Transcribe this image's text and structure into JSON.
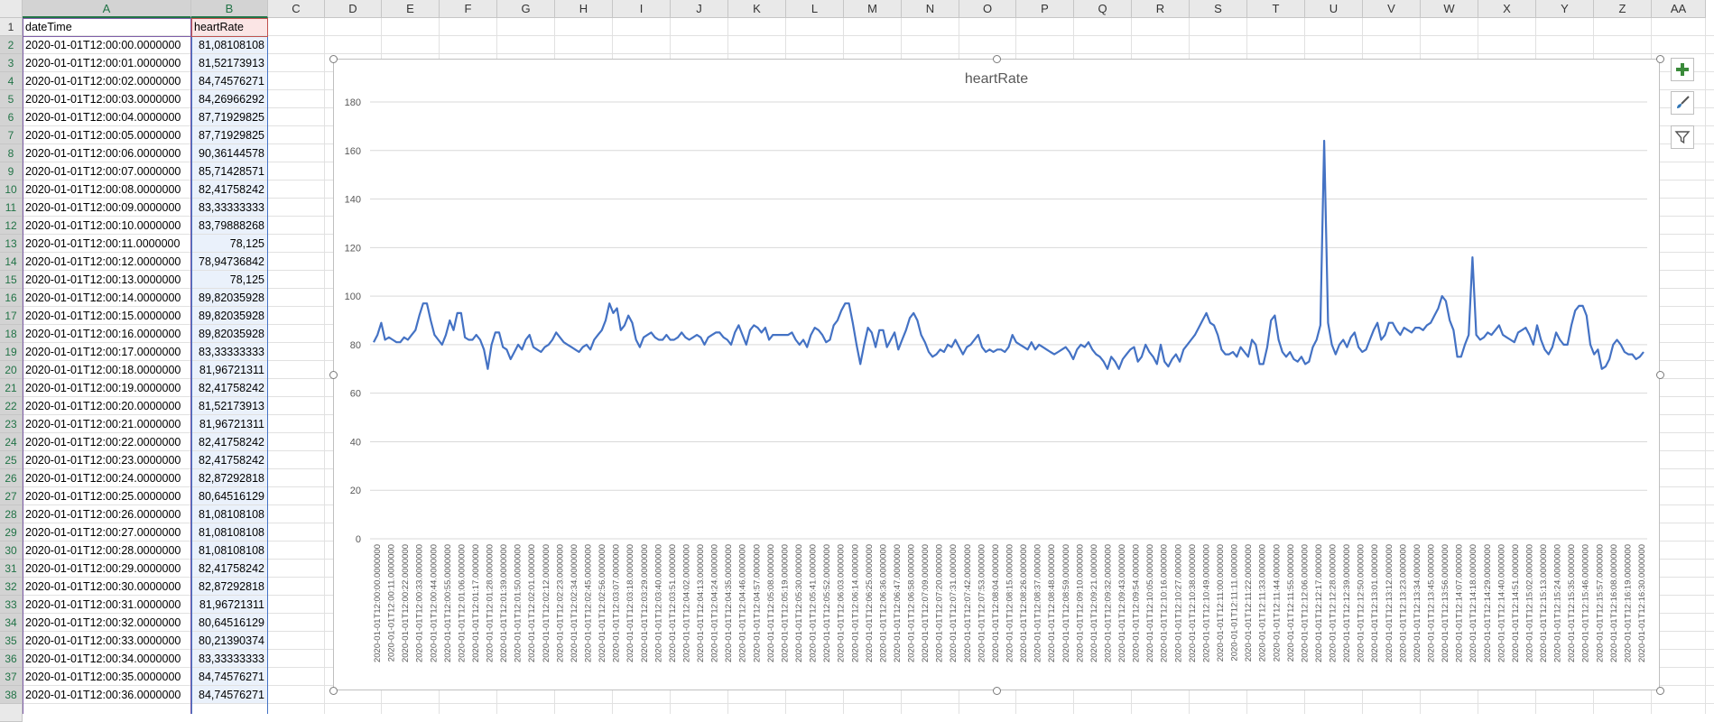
{
  "columns": [
    "A",
    "B",
    "C",
    "D",
    "E",
    "F",
    "G",
    "H",
    "I",
    "J",
    "K",
    "L",
    "M",
    "N",
    "O",
    "P",
    "Q",
    "R",
    "S",
    "T",
    "U",
    "V",
    "W",
    "X",
    "Y",
    "Z",
    "AA"
  ],
  "rows": [
    {
      "n": "1",
      "a": "dateTime",
      "b": "heartRate"
    },
    {
      "n": "2",
      "a": "2020-01-01T12:00:00.0000000",
      "b": "81,08108108"
    },
    {
      "n": "3",
      "a": "2020-01-01T12:00:01.0000000",
      "b": "81,52173913"
    },
    {
      "n": "4",
      "a": "2020-01-01T12:00:02.0000000",
      "b": "84,74576271"
    },
    {
      "n": "5",
      "a": "2020-01-01T12:00:03.0000000",
      "b": "84,26966292"
    },
    {
      "n": "6",
      "a": "2020-01-01T12:00:04.0000000",
      "b": "87,71929825"
    },
    {
      "n": "7",
      "a": "2020-01-01T12:00:05.0000000",
      "b": "87,71929825"
    },
    {
      "n": "8",
      "a": "2020-01-01T12:00:06.0000000",
      "b": "90,36144578"
    },
    {
      "n": "9",
      "a": "2020-01-01T12:00:07.0000000",
      "b": "85,71428571"
    },
    {
      "n": "10",
      "a": "2020-01-01T12:00:08.0000000",
      "b": "82,41758242"
    },
    {
      "n": "11",
      "a": "2020-01-01T12:00:09.0000000",
      "b": "83,33333333"
    },
    {
      "n": "12",
      "a": "2020-01-01T12:00:10.0000000",
      "b": "83,79888268"
    },
    {
      "n": "13",
      "a": "2020-01-01T12:00:11.0000000",
      "b": "78,125"
    },
    {
      "n": "14",
      "a": "2020-01-01T12:00:12.0000000",
      "b": "78,94736842"
    },
    {
      "n": "15",
      "a": "2020-01-01T12:00:13.0000000",
      "b": "78,125"
    },
    {
      "n": "16",
      "a": "2020-01-01T12:00:14.0000000",
      "b": "89,82035928"
    },
    {
      "n": "17",
      "a": "2020-01-01T12:00:15.0000000",
      "b": "89,82035928"
    },
    {
      "n": "18",
      "a": "2020-01-01T12:00:16.0000000",
      "b": "89,82035928"
    },
    {
      "n": "19",
      "a": "2020-01-01T12:00:17.0000000",
      "b": "83,33333333"
    },
    {
      "n": "20",
      "a": "2020-01-01T12:00:18.0000000",
      "b": "81,96721311"
    },
    {
      "n": "21",
      "a": "2020-01-01T12:00:19.0000000",
      "b": "82,41758242"
    },
    {
      "n": "22",
      "a": "2020-01-01T12:00:20.0000000",
      "b": "81,52173913"
    },
    {
      "n": "23",
      "a": "2020-01-01T12:00:21.0000000",
      "b": "81,96721311"
    },
    {
      "n": "24",
      "a": "2020-01-01T12:00:22.0000000",
      "b": "82,41758242"
    },
    {
      "n": "25",
      "a": "2020-01-01T12:00:23.0000000",
      "b": "82,41758242"
    },
    {
      "n": "26",
      "a": "2020-01-01T12:00:24.0000000",
      "b": "82,87292818"
    },
    {
      "n": "27",
      "a": "2020-01-01T12:00:25.0000000",
      "b": "80,64516129"
    },
    {
      "n": "28",
      "a": "2020-01-01T12:00:26.0000000",
      "b": "81,08108108"
    },
    {
      "n": "29",
      "a": "2020-01-01T12:00:27.0000000",
      "b": "81,08108108"
    },
    {
      "n": "30",
      "a": "2020-01-01T12:00:28.0000000",
      "b": "81,08108108"
    },
    {
      "n": "31",
      "a": "2020-01-01T12:00:29.0000000",
      "b": "82,41758242"
    },
    {
      "n": "32",
      "a": "2020-01-01T12:00:30.0000000",
      "b": "82,87292818"
    },
    {
      "n": "33",
      "a": "2020-01-01T12:00:31.0000000",
      "b": "81,96721311"
    },
    {
      "n": "34",
      "a": "2020-01-01T12:00:32.0000000",
      "b": "80,64516129"
    },
    {
      "n": "35",
      "a": "2020-01-01T12:00:33.0000000",
      "b": "80,21390374"
    },
    {
      "n": "36",
      "a": "2020-01-01T12:00:34.0000000",
      "b": "83,33333333"
    },
    {
      "n": "37",
      "a": "2020-01-01T12:00:35.0000000",
      "b": "84,74576271"
    },
    {
      "n": "38",
      "a": "2020-01-01T12:00:36.0000000",
      "b": "84,74576271"
    }
  ],
  "chart": {
    "title": "heartRate",
    "line_color": "#4472c4",
    "y_ticks": [
      "0",
      "20",
      "40",
      "60",
      "80",
      "100",
      "120",
      "140",
      "160",
      "180"
    ],
    "ylim": [
      0,
      180
    ],
    "x_labels": [
      "2020-01-01T12:00:00.0000000",
      "2020-01-01T12:00:11.0000000",
      "2020-01-01T12:00:22.0000000",
      "2020-01-01T12:00:33.0000000",
      "2020-01-01T12:00:44.0000000",
      "2020-01-01T12:00:55.0000000",
      "2020-01-01T12:01:06.0000000",
      "2020-01-01T12:01:17.0000000",
      "2020-01-01T12:01:28.0000000",
      "2020-01-01T12:01:39.0000000",
      "2020-01-01T12:01:50.0000000",
      "2020-01-01T12:02:01.0000000",
      "2020-01-01T12:02:12.0000000",
      "2020-01-01T12:02:23.0000000",
      "2020-01-01T12:02:34.0000000",
      "2020-01-01T12:02:45.0000000",
      "2020-01-01T12:02:56.0000000",
      "2020-01-01T12:03:07.0000000",
      "2020-01-01T12:03:18.0000000",
      "2020-01-01T12:03:29.0000000",
      "2020-01-01T12:03:40.0000000",
      "2020-01-01T12:03:51.0000000",
      "2020-01-01T12:04:02.0000000",
      "2020-01-01T12:04:13.0000000",
      "2020-01-01T12:04:24.0000000",
      "2020-01-01T12:04:35.0000000",
      "2020-01-01T12:04:46.0000000",
      "2020-01-01T12:04:57.0000000",
      "2020-01-01T12:05:08.0000000",
      "2020-01-01T12:05:19.0000000",
      "2020-01-01T12:05:30.0000000",
      "2020-01-01T12:05:41.0000000",
      "2020-01-01T12:05:52.0000000",
      "2020-01-01T12:06:03.0000000",
      "2020-01-01T12:06:14.0000000",
      "2020-01-01T12:06:25.0000000",
      "2020-01-01T12:06:36.0000000",
      "2020-01-01T12:06:47.0000000",
      "2020-01-01T12:06:58.0000000",
      "2020-01-01T12:07:09.0000000",
      "2020-01-01T12:07:20.0000000",
      "2020-01-01T12:07:31.0000000",
      "2020-01-01T12:07:42.0000000",
      "2020-01-01T12:07:53.0000000",
      "2020-01-01T12:08:04.0000000",
      "2020-01-01T12:08:15.0000000",
      "2020-01-01T12:08:26.0000000",
      "2020-01-01T12:08:37.0000000",
      "2020-01-01T12:08:48.0000000",
      "2020-01-01T12:08:59.0000000",
      "2020-01-01T12:09:10.0000000",
      "2020-01-01T12:09:21.0000000",
      "2020-01-01T12:09:32.0000000",
      "2020-01-01T12:09:43.0000000",
      "2020-01-01T12:09:54.0000000",
      "2020-01-01T12:10:05.0000000",
      "2020-01-01T12:10:16.0000000",
      "2020-01-01T12:10:27.0000000",
      "2020-01-01T12:10:38.0000000",
      "2020-01-01T12:10:49.0000000",
      "2020-01-01T12:11:00.0000000",
      "2020-01-01T12:11:11.0000000",
      "2020-01-01T12:11:22.0000000",
      "2020-01-01T12:11:33.0000000",
      "2020-01-01T12:11:44.0000000",
      "2020-01-01T12:11:55.0000000",
      "2020-01-01T12:12:06.0000000",
      "2020-01-01T12:12:17.0000000",
      "2020-01-01T12:12:28.0000000",
      "2020-01-01T12:12:39.0000000",
      "2020-01-01T12:12:50.0000000",
      "2020-01-01T12:13:01.0000000",
      "2020-01-01T12:13:12.0000000",
      "2020-01-01T12:13:23.0000000",
      "2020-01-01T12:13:34.0000000",
      "2020-01-01T12:13:45.0000000",
      "2020-01-01T12:13:56.0000000",
      "2020-01-01T12:14:07.0000000",
      "2020-01-01T12:14:18.0000000",
      "2020-01-01T12:14:29.0000000",
      "2020-01-01T12:14:40.0000000",
      "2020-01-01T12:14:51.0000000",
      "2020-01-01T12:15:02.0000000",
      "2020-01-01T12:15:13.0000000",
      "2020-01-01T12:15:24.0000000",
      "2020-01-01T12:15:35.0000000",
      "2020-01-01T12:15:46.0000000",
      "2020-01-01T12:15:57.0000000",
      "2020-01-01T12:16:08.0000000",
      "2020-01-01T12:16:19.0000000",
      "2020-01-01T12:16:30.0000000"
    ]
  },
  "chart_data": {
    "type": "line",
    "title": "heartRate",
    "xlabel": "",
    "ylabel": "",
    "ylim": [
      0,
      180
    ],
    "grid": true,
    "legend": "none",
    "series": [
      {
        "name": "heartRate",
        "values": [
          81,
          84,
          89,
          82,
          83,
          82,
          81,
          81,
          83,
          82,
          84,
          86,
          92,
          97,
          97,
          90,
          84,
          82,
          80,
          84,
          90,
          86,
          93,
          93,
          83,
          82,
          82,
          84,
          82,
          78,
          70,
          80,
          85,
          85,
          79,
          78,
          74,
          77,
          80,
          78,
          82,
          84,
          79,
          78,
          77,
          79,
          80,
          82,
          85,
          83,
          81,
          80,
          79,
          78,
          77,
          79,
          80,
          78,
          82,
          84,
          86,
          90,
          97,
          93,
          95,
          86,
          88,
          92,
          89,
          82,
          79,
          83,
          84,
          85,
          83,
          82,
          82,
          84,
          82,
          82,
          83,
          85,
          83,
          82,
          83,
          84,
          83,
          80,
          83,
          84,
          85,
          85,
          83,
          82,
          80,
          85,
          88,
          84,
          80,
          86,
          88,
          87,
          85,
          87,
          82,
          84,
          84,
          84,
          84,
          84,
          85,
          82,
          80,
          82,
          79,
          84,
          87,
          86,
          84,
          81,
          82,
          88,
          90,
          94,
          97,
          97,
          89,
          80,
          72,
          80,
          87,
          85,
          79,
          86,
          86,
          79,
          82,
          85,
          78,
          82,
          86,
          91,
          93,
          90,
          84,
          81,
          77,
          75,
          76,
          78,
          77,
          80,
          79,
          82,
          79,
          76,
          79,
          80,
          82,
          84,
          79,
          77,
          78,
          77,
          78,
          78,
          77,
          79,
          84,
          81,
          80,
          79,
          78,
          81,
          78,
          80,
          79,
          78,
          77,
          76,
          77,
          78,
          79,
          77,
          74,
          78,
          80,
          79,
          81,
          78,
          76,
          75,
          73,
          70,
          75,
          73,
          70,
          74,
          76,
          78,
          79,
          73,
          75,
          80,
          77,
          75,
          72,
          80,
          73,
          71,
          74,
          76,
          73,
          78,
          80,
          82,
          84,
          87,
          90,
          93,
          89,
          88,
          84,
          78,
          76,
          76,
          77,
          75,
          79,
          77,
          75,
          82,
          80,
          72,
          72,
          79,
          90,
          92,
          82,
          77,
          75,
          77,
          74,
          73,
          75,
          72,
          73,
          79,
          82,
          88,
          164,
          89,
          80,
          76,
          80,
          82,
          79,
          83,
          85,
          79,
          77,
          78,
          82,
          86,
          89,
          82,
          84,
          89,
          89,
          86,
          84,
          87,
          86,
          85,
          87,
          87,
          86,
          88,
          89,
          92,
          95,
          100,
          98,
          90,
          86,
          75,
          75,
          80,
          84,
          116,
          84,
          82,
          83,
          85,
          84,
          86,
          88,
          84,
          83,
          82,
          81,
          85,
          86,
          87,
          84,
          80,
          88,
          82,
          78,
          76,
          79,
          85,
          82,
          80,
          80,
          88,
          94,
          96,
          96,
          92,
          80,
          76,
          78,
          70,
          71,
          74,
          80,
          82,
          80,
          77,
          76,
          76,
          74,
          75,
          77
        ]
      }
    ]
  }
}
